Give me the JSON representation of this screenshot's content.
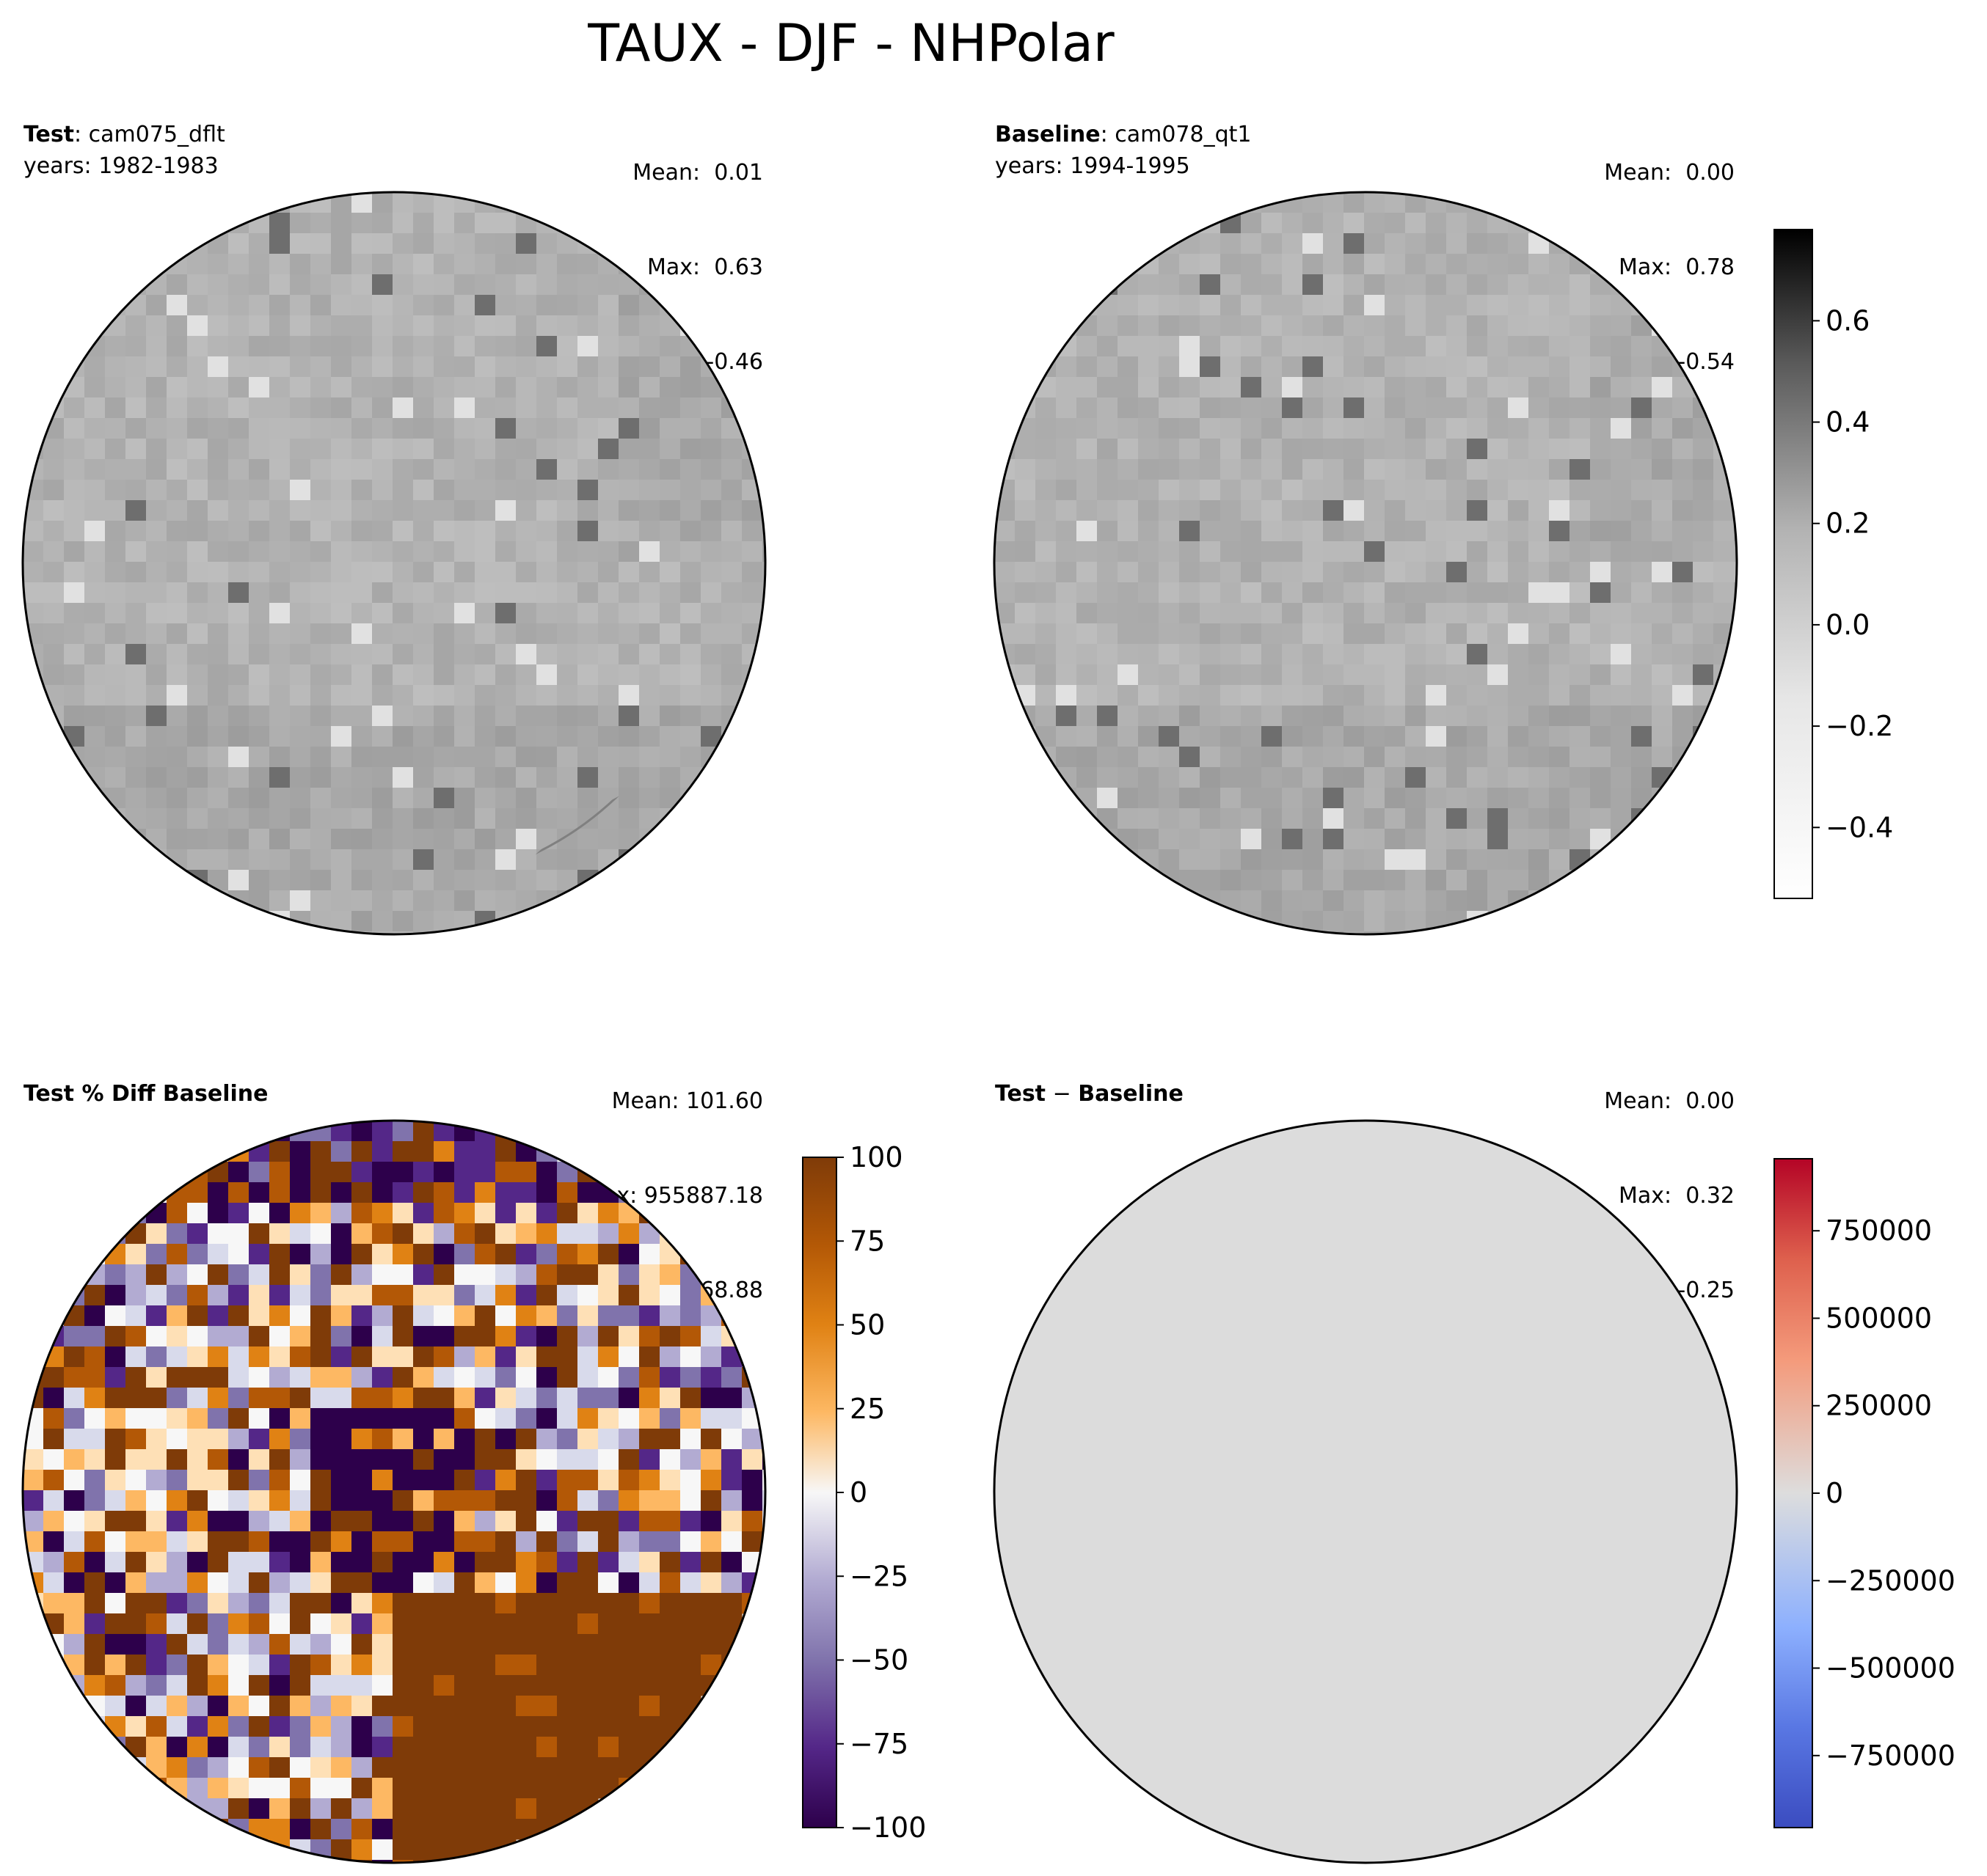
{
  "figure": {
    "title": "TAUX - DJF - NHPolar"
  },
  "panels": {
    "test": {
      "label_bold": "Test",
      "label_rest": ": cam075_dflt",
      "years": "years: 1982-1983",
      "mean": "Mean:  0.01",
      "max": "Max:  0.63",
      "min": "Min: -0.46"
    },
    "baseline": {
      "label_bold": "Baseline",
      "label_rest": ": cam078_qt1",
      "years": "years: 1994-1995",
      "mean": "Mean:  0.00",
      "max": "Max:  0.78",
      "min": "Min: -0.54"
    },
    "pctdiff": {
      "label_bold": "Test % Diff Baseline",
      "mean": "Mean: 101.60",
      "max": "Max: 955887.18",
      "min": "Min: -156468.88"
    },
    "diff": {
      "label_bold": "Test",
      "label_rest": " − ",
      "label_bold2": "Baseline",
      "mean": "Mean:  0.00",
      "max": "Max:  0.32",
      "min": "Min: -0.25"
    }
  },
  "colorbars": {
    "gray": {
      "colormap": "Greys",
      "range": [
        -0.54,
        0.78
      ],
      "ticks": [
        0.6,
        0.4,
        0.2,
        0.0,
        -0.2,
        -0.4
      ],
      "tick_labels": [
        "0.6",
        "0.4",
        "0.2",
        "0.0",
        "−0.2",
        "−0.4"
      ]
    },
    "pct": {
      "colormap": "PuOr_r",
      "range": [
        -100,
        100
      ],
      "ticks": [
        100,
        75,
        50,
        25,
        0,
        -25,
        -50,
        -75,
        -100
      ],
      "tick_labels": [
        "100",
        "75",
        "50",
        "25",
        "0",
        "−25",
        "−50",
        "−75",
        "−100"
      ]
    },
    "diff": {
      "colormap": "coolwarm",
      "range": [
        -955887.18,
        955887.18
      ],
      "ticks": [
        750000,
        500000,
        250000,
        0,
        -250000,
        -500000,
        -750000
      ],
      "tick_labels": [
        "750000",
        "500000",
        "250000",
        "0",
        "−250000",
        "−500000",
        "−750000"
      ]
    }
  },
  "colors": {
    "diff_field": "#dcdcdc",
    "gridline": "#808080",
    "coastline": "#000000"
  }
}
